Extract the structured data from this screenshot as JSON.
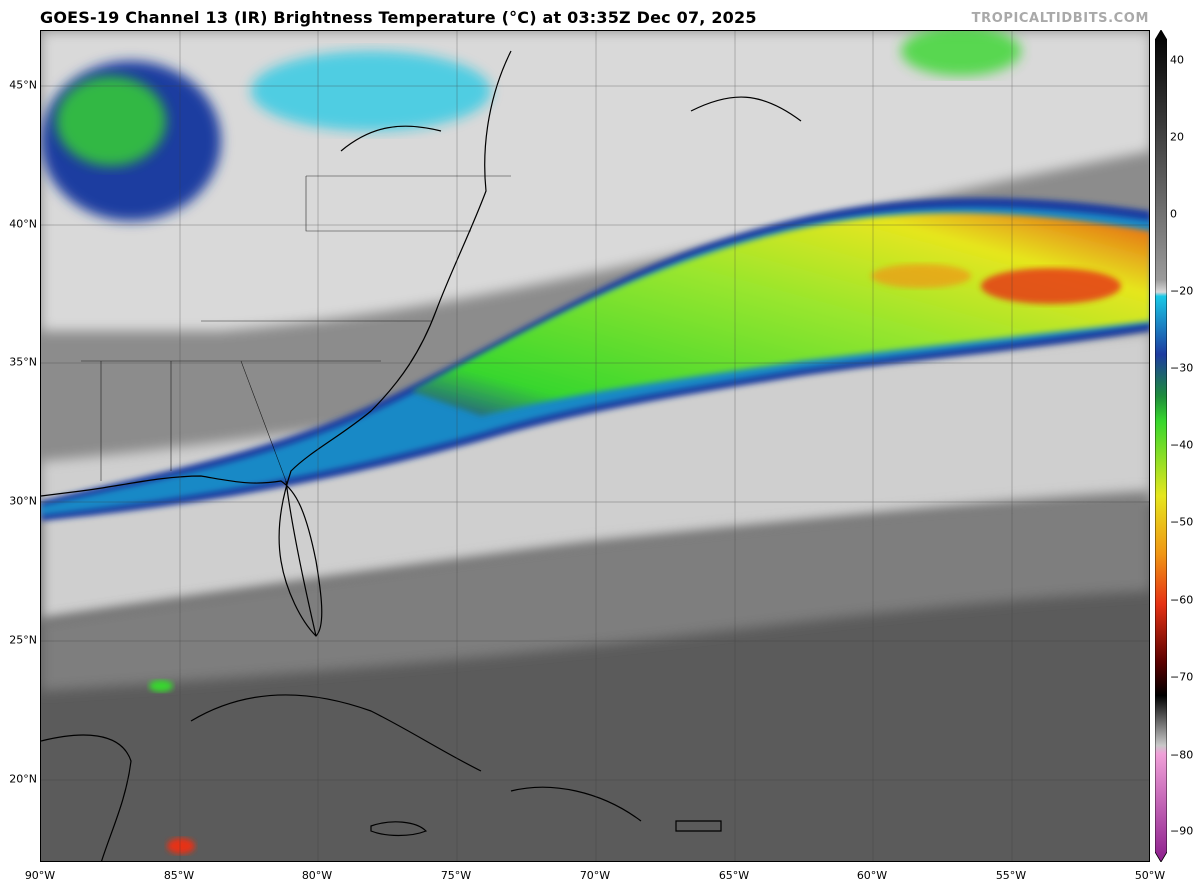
{
  "header": {
    "title": "GOES-19 Channel 13 (IR) Brightness Temperature (°C) at 03:35Z Dec 07, 2025",
    "watermark": "TROPICALTIDBITS.COM"
  },
  "map": {
    "lat_labels": [
      "45°N",
      "40°N",
      "35°N",
      "30°N",
      "25°N",
      "20°N"
    ],
    "lon_labels": [
      "90°W",
      "85°W",
      "80°W",
      "75°W",
      "70°W",
      "65°W",
      "60°W",
      "55°W",
      "50°W"
    ],
    "extent": {
      "lon": [
        -90,
        -50
      ],
      "lat": [
        17,
        47
      ]
    },
    "colors": {
      "ocean_clear": "#5b5b5b",
      "cloud_warm": "#a0a0a0",
      "cloud_mid": "#dcdcdc",
      "cold_cyan": "#19c8e6",
      "cold_blue": "#1e3ca0",
      "cold_green": "#37d72d",
      "very_cold_yellow": "#e6e61e",
      "coldest_red": "#e63214"
    }
  },
  "colorbar": {
    "ticks": [
      "40",
      "20",
      "0",
      "−20",
      "−30",
      "−40",
      "−50",
      "−60",
      "−70",
      "−80",
      "−90"
    ],
    "range": [
      -90,
      40
    ]
  }
}
